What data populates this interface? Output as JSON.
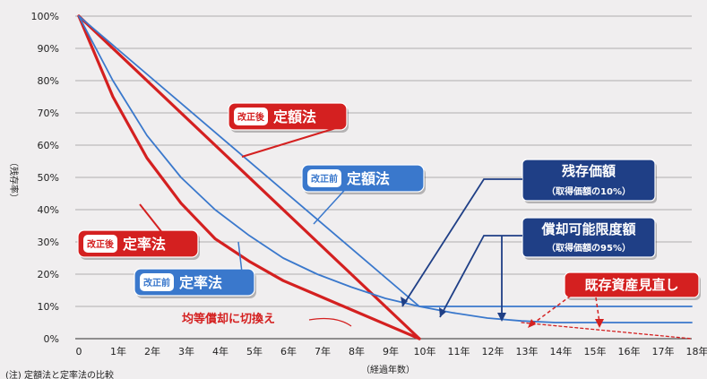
{
  "chart_data": {
    "type": "line",
    "ylabel": "（残存率）",
    "xlabel": "（経過年数）",
    "ylim": [
      0,
      100
    ],
    "xlim": [
      0,
      18
    ],
    "y_ticks": [
      "0%",
      "10%",
      "20%",
      "30%",
      "40%",
      "50%",
      "60%",
      "70%",
      "80%",
      "90%",
      "100%"
    ],
    "x_ticks": [
      "0",
      "1年",
      "2年",
      "3年",
      "4年",
      "5年",
      "6年",
      "7年",
      "8年",
      "9年",
      "10年",
      "11年",
      "12年",
      "13年",
      "14年",
      "15年",
      "16年",
      "17年",
      "18年"
    ],
    "grid": true,
    "series": [
      {
        "name": "改正後 定額法",
        "color": "#d42020",
        "x": [
          0,
          10
        ],
        "y": [
          100,
          0
        ]
      },
      {
        "name": "改正後 定率法",
        "color": "#d42020",
        "x": [
          0,
          1,
          2,
          3,
          4,
          5,
          6,
          7,
          8,
          9,
          10
        ],
        "y": [
          100,
          75,
          56,
          42,
          31,
          24,
          18,
          13.5,
          9,
          4.5,
          0
        ]
      },
      {
        "name": "改正前 定額法",
        "color": "#3a78cc",
        "x": [
          0,
          10,
          18
        ],
        "y": [
          100,
          10,
          10
        ]
      },
      {
        "name": "改正前 定率法",
        "color": "#3a78cc",
        "x": [
          0,
          1,
          2,
          3,
          4,
          5,
          6,
          7,
          8,
          9,
          10,
          11,
          12,
          13,
          14,
          15,
          16,
          17,
          18
        ],
        "y": [
          100,
          80,
          63,
          50,
          40,
          32,
          25,
          20,
          16,
          12.5,
          10,
          8,
          6.4,
          5.5,
          5,
          5,
          5,
          5,
          5
        ]
      },
      {
        "name": "既存資産見直し",
        "color": "#d42020",
        "dashed": true,
        "x": [
          13,
          18
        ],
        "y": [
          5,
          0
        ]
      }
    ],
    "annotations": {
      "red_teigaku": {
        "tag": "改正後",
        "label": "定額法"
      },
      "red_teiritsu": {
        "tag": "改正後",
        "label": "定率法"
      },
      "blue_teigaku": {
        "tag": "改正前",
        "label": "定額法"
      },
      "blue_teiritsu": {
        "tag": "改正前",
        "label": "定率法"
      },
      "kinto": "均等償却に切換え",
      "zanson": {
        "title": "残存価額",
        "sub": "（取得価額の10%）"
      },
      "shokyaku": {
        "title": "償却可能限度額",
        "sub": "（取得価額の95%）"
      },
      "kizon": "既存資産見直し"
    },
    "footnote": "(注) 定額法と定率法の比較"
  }
}
